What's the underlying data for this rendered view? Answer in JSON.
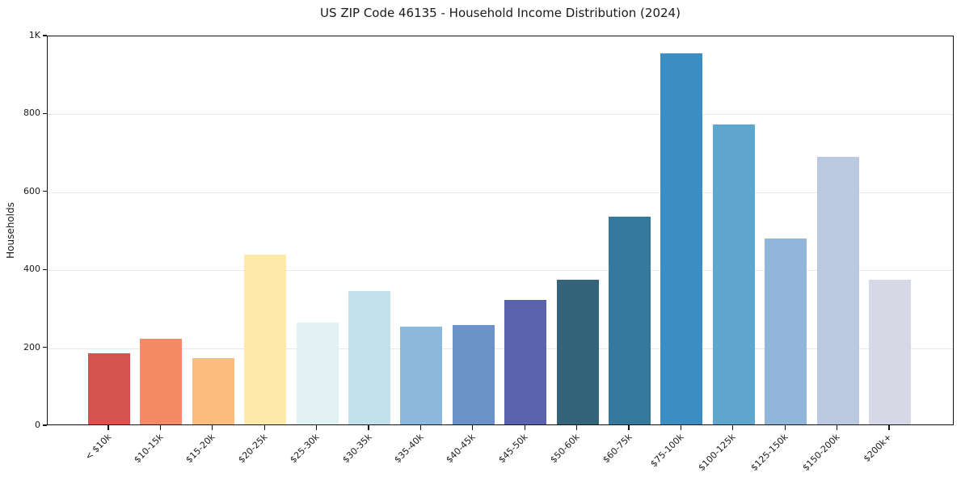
{
  "chart_data": {
    "type": "bar",
    "title": "US ZIP Code 46135 - Household Income Distribution (2024)",
    "xlabel": "",
    "ylabel": "Households",
    "ylim": [
      0,
      1000
    ],
    "grid": "horizontal",
    "legend": "none",
    "categories": [
      "< $10k",
      "$10-15k",
      "$15-20k",
      "$20-25k",
      "$25-30k",
      "$30-35k",
      "$35-40k",
      "$40-45k",
      "$45-50k",
      "$50-60k",
      "$60-75k",
      "$75-100k",
      "$100-125k",
      "$125-150k",
      "$150-200k",
      "$200k+"
    ],
    "values": [
      183,
      219,
      170,
      436,
      261,
      342,
      251,
      255,
      320,
      371,
      533,
      952,
      770,
      477,
      687,
      372
    ],
    "bar_colors": [
      "#d6544e",
      "#f58a67",
      "#fbbd7d",
      "#fde9a9",
      "#e4f1f3",
      "#c3e1ed",
      "#8bb8db",
      "#6b92c9",
      "#5b62ae",
      "#34647a",
      "#35799d",
      "#3a8ec2",
      "#5fa6ce",
      "#92b6d9",
      "#bac9e0",
      "#d7d8e6"
    ],
    "yticks": [
      {
        "value": 0,
        "label": "0"
      },
      {
        "value": 200,
        "label": "200"
      },
      {
        "value": 400,
        "label": "400"
      },
      {
        "value": 600,
        "label": "600"
      },
      {
        "value": 800,
        "label": "800"
      },
      {
        "value": 1000,
        "label": "1K"
      }
    ]
  },
  "colors": {
    "background": "#ffffff",
    "axis": "#141414",
    "grid": "#e9e9e9",
    "text": "#1a1a1a"
  }
}
